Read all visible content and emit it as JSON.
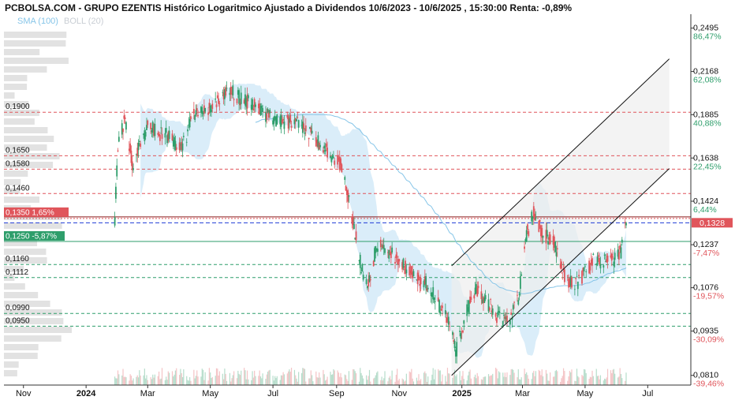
{
  "title": "PCBOLSA.COM - GRUPO EZENTIS Histórico Logaritmico Ajustado a Dividendos 10/6/2023 - 10/6/2025 , 15:30:00 Renta: -0,89%",
  "legend": [
    {
      "label": "SMA (100)",
      "color": "#86c5e8"
    },
    {
      "label": "BOLL (20)",
      "color": "#c9ced4"
    }
  ],
  "colors": {
    "up": "#2e9e6b",
    "down": "#e0555b",
    "band": "#d3eaf8",
    "sma": "#86c5e8",
    "channel_fill": "#eeeeee",
    "resistance": "#e0555b",
    "support": "#2e9e6b",
    "current": "#1f3bd6"
  },
  "chart_data": {
    "type": "candlestick",
    "y_scale": "log",
    "ylim": [
      0.0785,
      0.261
    ],
    "xlim": [
      "2023-10-13",
      "2025-08-12"
    ],
    "x_ticks": [
      {
        "date": "2023-11-01",
        "label": "Nov",
        "bold": false
      },
      {
        "date": "2024-01-01",
        "label": "2024",
        "bold": true
      },
      {
        "date": "2024-03-01",
        "label": "Mar",
        "bold": false
      },
      {
        "date": "2024-05-01",
        "label": "May",
        "bold": false
      },
      {
        "date": "2024-07-01",
        "label": "Jul",
        "bold": false
      },
      {
        "date": "2024-09-01",
        "label": "Sep",
        "bold": false
      },
      {
        "date": "2024-11-01",
        "label": "Nov",
        "bold": false
      },
      {
        "date": "2025-01-01",
        "label": "2025",
        "bold": true
      },
      {
        "date": "2025-03-01",
        "label": "Mar",
        "bold": false
      },
      {
        "date": "2025-05-01",
        "label": "May",
        "bold": false
      },
      {
        "date": "2025-07-01",
        "label": "Jul",
        "bold": false
      }
    ],
    "right_axis": [
      {
        "price": 0.2495,
        "label": "0,2495",
        "pct": "86,47%",
        "pct_color": "#2e9e6b"
      },
      {
        "price": 0.2168,
        "label": "0,2168",
        "pct": "62,08%",
        "pct_color": "#2e9e6b"
      },
      {
        "price": 0.1885,
        "label": "0,1885",
        "pct": "40,88%",
        "pct_color": "#2e9e6b"
      },
      {
        "price": 0.1638,
        "label": "0,1638",
        "pct": "22,45%",
        "pct_color": "#2e9e6b"
      },
      {
        "price": 0.1424,
        "label": "0,1424",
        "pct": "6,44%",
        "pct_color": "#2e9e6b"
      },
      {
        "price": 0.1237,
        "label": "0,1237",
        "pct": "-7,47%",
        "pct_color": "#e0555b"
      },
      {
        "price": 0.1076,
        "label": "0,1076",
        "pct": "-19,57%",
        "pct_color": "#e0555b"
      },
      {
        "price": 0.0935,
        "label": "0,0935",
        "pct": "-30,09%",
        "pct_color": "#e0555b"
      },
      {
        "price": 0.081,
        "label": "0,0810",
        "pct": "-39,46%",
        "pct_color": "#e0555b"
      }
    ],
    "current_price": {
      "value": 0.1328,
      "label": "0,1328"
    },
    "horizontal_levels": [
      {
        "price": 0.19,
        "label": "0,1900",
        "kind": "resistance"
      },
      {
        "price": 0.165,
        "label": "0,1650",
        "kind": "resistance"
      },
      {
        "price": 0.158,
        "label": "0,1580",
        "kind": "resistance"
      },
      {
        "price": 0.146,
        "label": "0,1460",
        "kind": "resistance"
      },
      {
        "price": 0.135,
        "label": "0,1350",
        "pct": "1,65%",
        "kind": "resistance-main"
      },
      {
        "price": 0.125,
        "label": "0,1250",
        "pct": "-5,87%",
        "kind": "support-main"
      },
      {
        "price": 0.116,
        "label": "0,1160",
        "kind": "support"
      },
      {
        "price": 0.1112,
        "label": "0,1112",
        "kind": "support"
      },
      {
        "price": 0.099,
        "label": "0,0990",
        "kind": "support"
      },
      {
        "price": 0.095,
        "label": "0,0950",
        "kind": "support"
      }
    ],
    "channel": {
      "upper": [
        {
          "date": "2024-12-22",
          "price": 0.1155
        },
        {
          "date": "2025-07-22",
          "price": 0.2258
        }
      ],
      "lower": [
        {
          "date": "2024-12-22",
          "price": 0.081
        },
        {
          "date": "2025-07-22",
          "price": 0.1583
        }
      ]
    },
    "price_path": [
      [
        "2024-01-28",
        0.125
      ],
      [
        "2024-02-01",
        0.17
      ],
      [
        "2024-02-08",
        0.188
      ],
      [
        "2024-02-15",
        0.16
      ],
      [
        "2024-02-22",
        0.17
      ],
      [
        "2024-03-01",
        0.182
      ],
      [
        "2024-03-10",
        0.178
      ],
      [
        "2024-03-20",
        0.176
      ],
      [
        "2024-03-28",
        0.172
      ],
      [
        "2024-04-05",
        0.172
      ],
      [
        "2024-04-15",
        0.188
      ],
      [
        "2024-04-25",
        0.194
      ],
      [
        "2024-05-01",
        0.192
      ],
      [
        "2024-05-10",
        0.199
      ],
      [
        "2024-05-20",
        0.204
      ],
      [
        "2024-05-30",
        0.199
      ],
      [
        "2024-06-10",
        0.195
      ],
      [
        "2024-06-20",
        0.19
      ],
      [
        "2024-07-01",
        0.186
      ],
      [
        "2024-07-10",
        0.184
      ],
      [
        "2024-07-20",
        0.185
      ],
      [
        "2024-08-01",
        0.181
      ],
      [
        "2024-08-15",
        0.172
      ],
      [
        "2024-08-25",
        0.167
      ],
      [
        "2024-09-05",
        0.16
      ],
      [
        "2024-09-15",
        0.138
      ],
      [
        "2024-09-25",
        0.115
      ],
      [
        "2024-10-02",
        0.109
      ],
      [
        "2024-10-10",
        0.124
      ],
      [
        "2024-10-20",
        0.121
      ],
      [
        "2024-11-01",
        0.118
      ],
      [
        "2024-11-15",
        0.112
      ],
      [
        "2024-12-01",
        0.108
      ],
      [
        "2024-12-10",
        0.101
      ],
      [
        "2024-12-20",
        0.096
      ],
      [
        "2024-12-26",
        0.087
      ],
      [
        "2025-01-05",
        0.099
      ],
      [
        "2025-01-15",
        0.107
      ],
      [
        "2025-01-25",
        0.103
      ],
      [
        "2025-02-05",
        0.098
      ],
      [
        "2025-02-15",
        0.096
      ],
      [
        "2025-02-25",
        0.104
      ],
      [
        "2025-03-05",
        0.128
      ],
      [
        "2025-03-12",
        0.137
      ],
      [
        "2025-03-20",
        0.129
      ],
      [
        "2025-04-01",
        0.124
      ],
      [
        "2025-04-10",
        0.112
      ],
      [
        "2025-04-20",
        0.108
      ],
      [
        "2025-05-01",
        0.113
      ],
      [
        "2025-05-10",
        0.118
      ],
      [
        "2025-05-20",
        0.117
      ],
      [
        "2025-05-30",
        0.118
      ],
      [
        "2025-06-05",
        0.121
      ],
      [
        "2025-06-10",
        0.135
      ]
    ]
  }
}
